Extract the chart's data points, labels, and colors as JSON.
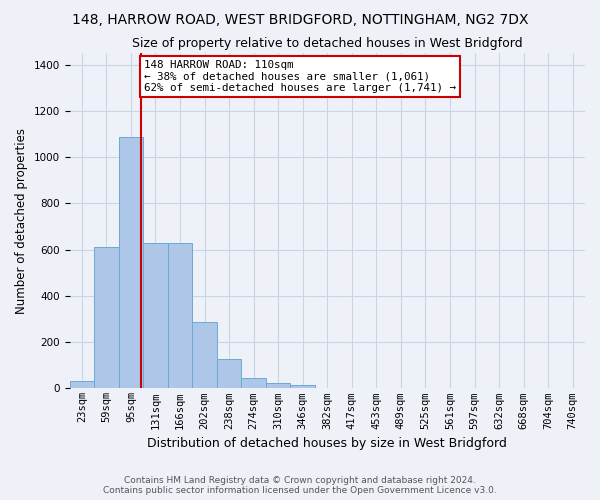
{
  "title": "148, HARROW ROAD, WEST BRIDGFORD, NOTTINGHAM, NG2 7DX",
  "subtitle": "Size of property relative to detached houses in West Bridgford",
  "xlabel": "Distribution of detached houses by size in West Bridgford",
  "ylabel": "Number of detached properties",
  "bin_labels": [
    "23sqm",
    "59sqm",
    "95sqm",
    "131sqm",
    "166sqm",
    "202sqm",
    "238sqm",
    "274sqm",
    "310sqm",
    "346sqm",
    "382sqm",
    "417sqm",
    "453sqm",
    "489sqm",
    "525sqm",
    "561sqm",
    "597sqm",
    "632sqm",
    "668sqm",
    "704sqm",
    "740sqm"
  ],
  "bar_heights": [
    33,
    613,
    1085,
    630,
    630,
    285,
    125,
    43,
    25,
    15,
    0,
    0,
    0,
    0,
    0,
    0,
    0,
    0,
    0,
    0,
    0
  ],
  "bar_color": "#aec6e8",
  "bar_edge_color": "#6aaad4",
  "grid_color": "#c8d4e8",
  "background_color": "#eef2f8",
  "annotation_text": "148 HARROW ROAD: 110sqm\n← 38% of detached houses are smaller (1,061)\n62% of semi-detached houses are larger (1,741) →",
  "annotation_box_color": "#ffffff",
  "annotation_border_color": "#cc0000",
  "vline_color": "#cc0000",
  "ylim": [
    0,
    1450
  ],
  "yticks": [
    0,
    200,
    400,
    600,
    800,
    1000,
    1200,
    1400
  ],
  "footer_line1": "Contains HM Land Registry data © Crown copyright and database right 2024.",
  "footer_line2": "Contains public sector information licensed under the Open Government Licence v3.0.",
  "title_fontsize": 10,
  "subtitle_fontsize": 9,
  "xlabel_fontsize": 9,
  "ylabel_fontsize": 8.5,
  "tick_fontsize": 7.5,
  "annotation_fontsize": 7.8,
  "footer_fontsize": 6.5
}
